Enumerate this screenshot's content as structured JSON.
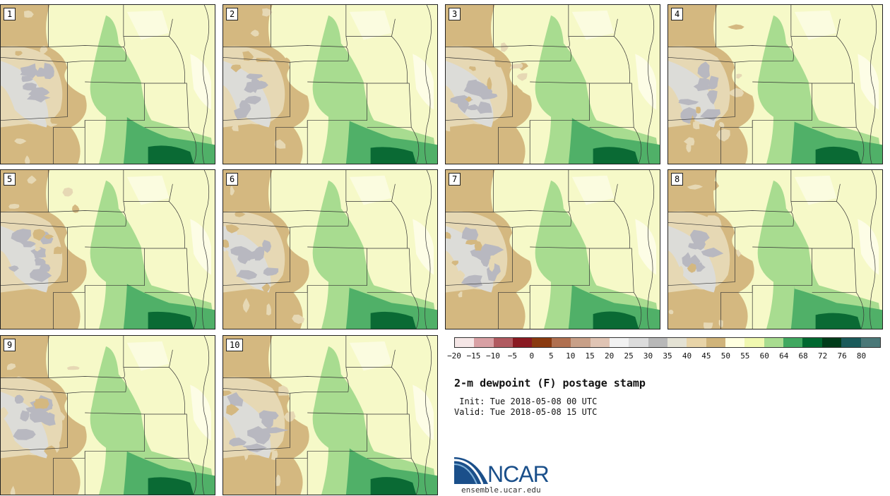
{
  "panels": [
    {
      "label": "1"
    },
    {
      "label": "2"
    },
    {
      "label": "3"
    },
    {
      "label": "4"
    },
    {
      "label": "5"
    },
    {
      "label": "6"
    },
    {
      "label": "7"
    },
    {
      "label": "8"
    },
    {
      "label": "9"
    },
    {
      "label": "10"
    }
  ],
  "colorbar": {
    "colors": [
      "#f5e6e6",
      "#d8a0a4",
      "#b05a60",
      "#8a1a22",
      "#8a3a10",
      "#b07050",
      "#c8a088",
      "#e0c4b4",
      "#f2f2f2",
      "#dcdcdc",
      "#b8b8b8",
      "#e4e2d4",
      "#e8d4a8",
      "#d0b47a",
      "#ffffe0",
      "#f0f8b0",
      "#a8dc90",
      "#40a860",
      "#006830",
      "#003c1a",
      "#1a5a5a",
      "#4a7878"
    ],
    "tick_labels": [
      "−20",
      "−15",
      "−10",
      "−5",
      "0",
      "5",
      "10",
      "15",
      "20",
      "25",
      "30",
      "35",
      "40",
      "45",
      "50",
      "55",
      "60",
      "64",
      "68",
      "72",
      "76",
      "80"
    ]
  },
  "title": "2-m dewpoint (F) postage stamp",
  "init": " Init: Tue 2018-05-08 00 UTC",
  "valid": "Valid: Tue 2018-05-08 15 UTC",
  "logo": {
    "text": "NCAR",
    "url": "ensemble.ucar.edu",
    "color": "#1a4f8a"
  },
  "map_colors": {
    "base": "#f6f9c8",
    "pale": "#fdfde6",
    "tan": "#d4b880",
    "lighttan": "#e6d8b4",
    "gray": "#b8b8c0",
    "lightgray": "#dcdcd8",
    "green": "#a8dc90",
    "medgreen": "#50b068",
    "darkgreen": "#0a6a34",
    "border": "#333333"
  }
}
